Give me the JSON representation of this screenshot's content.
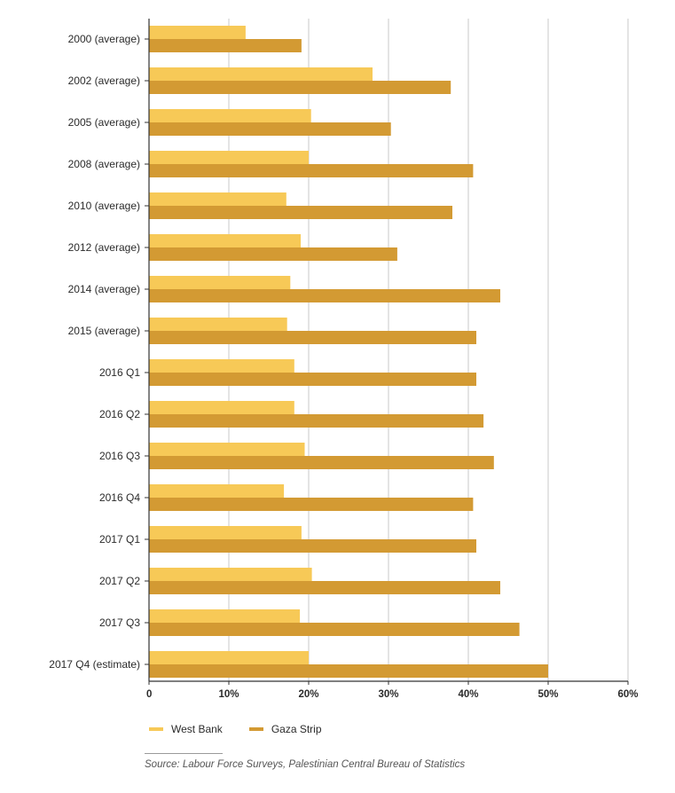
{
  "chart_data": {
    "type": "bar",
    "orientation": "horizontal",
    "categories": [
      "2000 (average)",
      "2002 (average)",
      "2005 (average)",
      "2008 (average)",
      "2010 (average)",
      "2012 (average)",
      "2014 (average)",
      "2015 (average)",
      "2016 Q1",
      "2016 Q2",
      "2016 Q3",
      "2016 Q4",
      "2017 Q1",
      "2017 Q2",
      "2017 Q3",
      "2017 Q4 (estimate)"
    ],
    "series": [
      {
        "name": "West Bank",
        "color": "#f7c957",
        "values": [
          12.1,
          28.0,
          20.3,
          20.0,
          17.2,
          19.0,
          17.7,
          17.3,
          18.2,
          18.2,
          19.5,
          16.9,
          19.1,
          20.4,
          18.9,
          20.0
        ]
      },
      {
        "name": "Gaza Strip",
        "color": "#d39a33",
        "values": [
          19.1,
          37.8,
          30.3,
          40.6,
          38.0,
          31.1,
          44.0,
          41.0,
          41.0,
          41.9,
          43.2,
          40.6,
          41.0,
          44.0,
          46.4,
          50.0
        ]
      }
    ],
    "x_ticks": [
      "0",
      "10%",
      "20%",
      "30%",
      "40%",
      "50%",
      "60%"
    ],
    "xlim": [
      0,
      60
    ],
    "grid": true,
    "legend_position": "bottom-left",
    "source": "Source: Labour Force Surveys, Palestinian Central Bureau of Statistics"
  }
}
